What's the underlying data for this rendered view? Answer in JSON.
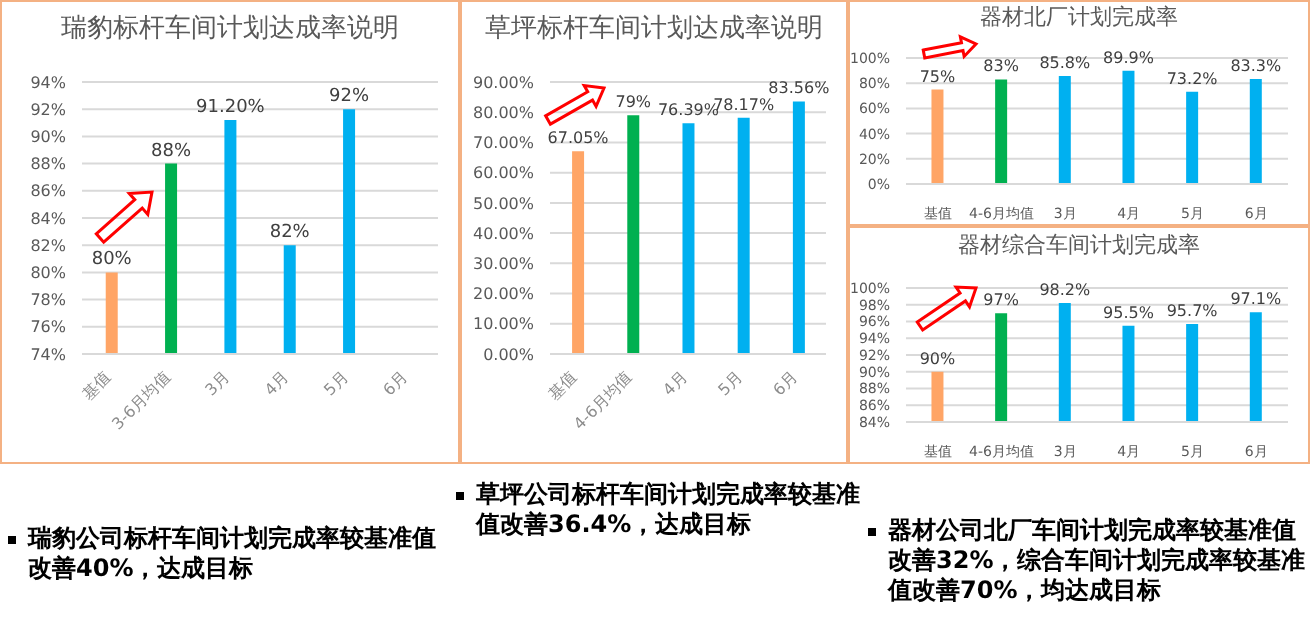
{
  "chart_data": [
    {
      "type": "bar",
      "title": "瑞豹标杆车间计划达成率说明",
      "categories": [
        "基值",
        "3-6月均值",
        "3月",
        "4月",
        "5月",
        "6月"
      ],
      "values": [
        80,
        88,
        91.2,
        82,
        92,
        null
      ],
      "colors": [
        "#ffa566",
        "#00b050",
        "#00b0f0",
        "#00b0f0",
        "#00b0f0",
        "#00b0f0"
      ],
      "value_labels": [
        "80%",
        "88%",
        "91.20%",
        "82%",
        "92%",
        null
      ],
      "ylim": [
        74,
        94
      ],
      "yticks": [
        {
          "value": 74,
          "label": "74%"
        },
        {
          "value": 76,
          "label": "76%"
        },
        {
          "value": 78,
          "label": "78%"
        },
        {
          "value": 80,
          "label": "80%"
        },
        {
          "value": 82,
          "label": "82%"
        },
        {
          "value": 84,
          "label": "84%"
        },
        {
          "value": 86,
          "label": "86%"
        },
        {
          "value": 88,
          "label": "88%"
        },
        {
          "value": 90,
          "label": "90%"
        },
        {
          "value": 92,
          "label": "92%"
        },
        {
          "value": 94,
          "label": "94%"
        }
      ],
      "grid": "y",
      "annotations": [
        "瑞豹公司标杆车间计划完成率较基准值改善40%，达成目标"
      ]
    },
    {
      "type": "bar",
      "title": "草坪标杆车间计划达成率说明",
      "categories": [
        "基值",
        "4-6月均值",
        "4月",
        "5月",
        "6月"
      ],
      "values": [
        67.05,
        79,
        76.39,
        78.17,
        83.56
      ],
      "colors": [
        "#ffa566",
        "#00b050",
        "#00b0f0",
        "#00b0f0",
        "#00b0f0"
      ],
      "value_labels": [
        "67.05%",
        "79%",
        "76.39%",
        "78.17%",
        "83.56%"
      ],
      "ylim": [
        0,
        90
      ],
      "yticks": [
        {
          "value": 0,
          "label": "0.00%"
        },
        {
          "value": 10,
          "label": "10.00%"
        },
        {
          "value": 20,
          "label": "20.00%"
        },
        {
          "value": 30,
          "label": "30.00%"
        },
        {
          "value": 40,
          "label": "40.00%"
        },
        {
          "value": 50,
          "label": "50.00%"
        },
        {
          "value": 60,
          "label": "60.00%"
        },
        {
          "value": 70,
          "label": "70.00%"
        },
        {
          "value": 80,
          "label": "80.00%"
        },
        {
          "value": 90,
          "label": "90.00%"
        }
      ],
      "grid": "y",
      "annotations": [
        "草坪公司标杆车间计划完成率较基准值改善36.4%，达成目标"
      ]
    },
    {
      "type": "bar",
      "title": "器材北厂计划完成率",
      "categories": [
        "基值",
        "4-6月均值",
        "3月",
        "4月",
        "5月",
        "6月"
      ],
      "values": [
        75,
        83,
        85.8,
        89.9,
        73.2,
        83.3
      ],
      "colors": [
        "#ffa566",
        "#00b050",
        "#00b0f0",
        "#00b0f0",
        "#00b0f0",
        "#00b0f0"
      ],
      "value_labels": [
        "75%",
        "83%",
        "85.8%",
        "89.9%",
        "73.2%",
        "83.3%"
      ],
      "ylim": [
        0,
        100
      ],
      "yticks": [
        {
          "value": 0,
          "label": "0%"
        },
        {
          "value": 20,
          "label": "20%"
        },
        {
          "value": 40,
          "label": "40%"
        },
        {
          "value": 60,
          "label": "60%"
        },
        {
          "value": 80,
          "label": "80%"
        },
        {
          "value": 100,
          "label": "100%"
        }
      ],
      "grid": "y"
    },
    {
      "type": "bar",
      "title": "器材综合车间计划完成率",
      "categories": [
        "基值",
        "4-6月均值",
        "3月",
        "4月",
        "5月",
        "6月"
      ],
      "values": [
        90,
        97,
        98.2,
        95.5,
        95.7,
        97.1
      ],
      "colors": [
        "#ffa566",
        "#00b050",
        "#00b0f0",
        "#00b0f0",
        "#00b0f0",
        "#00b0f0"
      ],
      "value_labels": [
        "90%",
        "97%",
        "98.2%",
        "95.5%",
        "95.7%",
        "97.1%"
      ],
      "ylim": [
        84,
        100
      ],
      "yticks": [
        {
          "value": 84,
          "label": "84%"
        },
        {
          "value": 86,
          "label": "86%"
        },
        {
          "value": 88,
          "label": "88%"
        },
        {
          "value": 90,
          "label": "90%"
        },
        {
          "value": 92,
          "label": "92%"
        },
        {
          "value": 94,
          "label": "94%"
        },
        {
          "value": 96,
          "label": "96%"
        },
        {
          "value": 98,
          "label": "98%"
        },
        {
          "value": 100,
          "label": "100%"
        }
      ],
      "grid": "y",
      "annotations": [
        "器材公司北厂车间计划完成率较基准值改善32%，综合车间计划完成率较基准值改善70%，均达成目标"
      ]
    }
  ]
}
